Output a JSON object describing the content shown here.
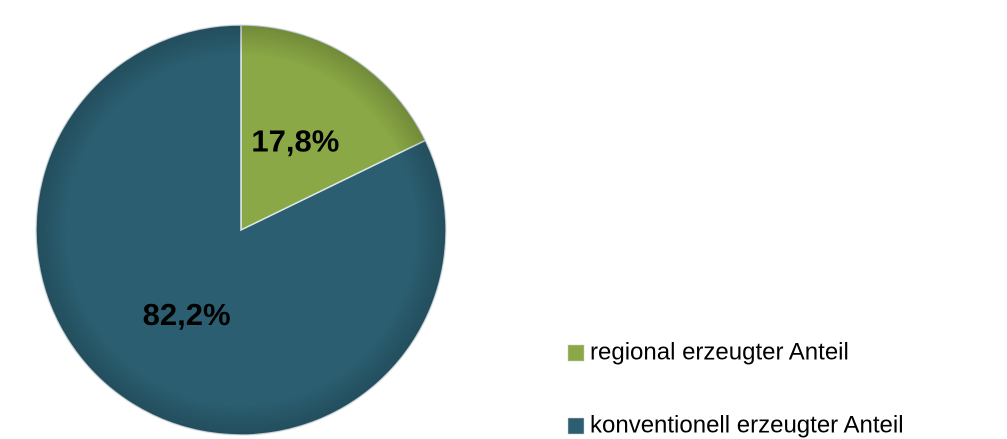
{
  "chart_data": {
    "type": "pie",
    "categories": [
      "regional erzeugter Anteil",
      "konventionell erzeugter Anteil"
    ],
    "values": [
      17.8,
      82.2
    ],
    "value_labels": [
      "17,8%",
      "82,2%"
    ],
    "colors": [
      "#8aa845",
      "#2a5e70"
    ]
  }
}
